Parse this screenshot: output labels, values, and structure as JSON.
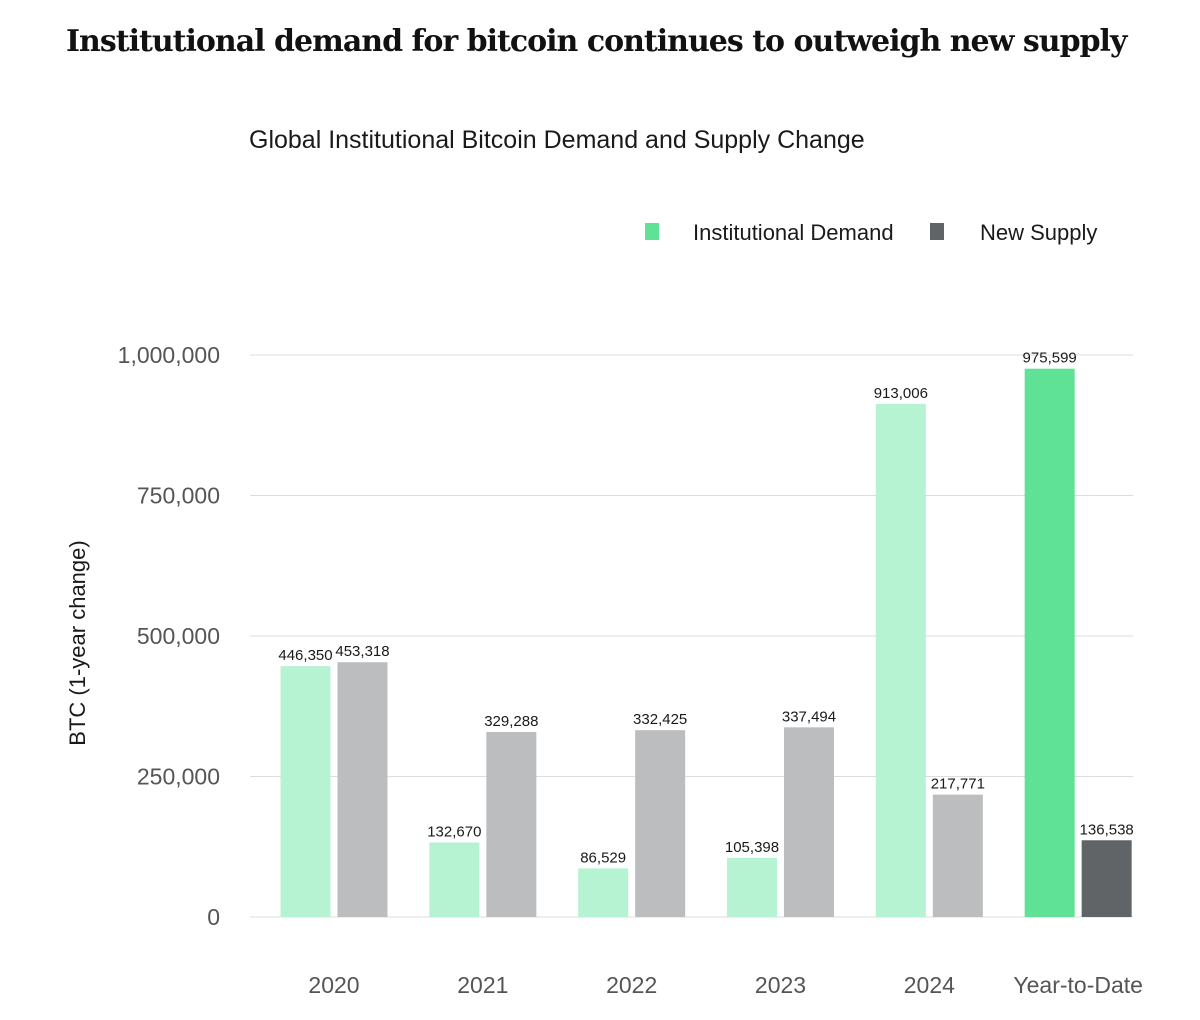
{
  "headline": "Institutional demand for bitcoin continues to outweigh new supply",
  "chart_data": {
    "type": "bar",
    "title": "Global Institutional Bitcoin Demand and Supply Change",
    "ylabel": "BTC (1-year change)",
    "xlabel": "",
    "ylim": [
      0,
      1000000
    ],
    "yticks": [
      {
        "value": 0,
        "label": "0"
      },
      {
        "value": 250000,
        "label": "250,000"
      },
      {
        "value": 500000,
        "label": "500,000"
      },
      {
        "value": 750000,
        "label": "750,000"
      },
      {
        "value": 1000000,
        "label": "1,000,000"
      }
    ],
    "grid": true,
    "legend_position": "top-right",
    "categories": [
      "2020",
      "2021",
      "2022",
      "2023",
      "2024",
      "Year-to-Date"
    ],
    "series": [
      {
        "name": "Institutional Demand",
        "color": "#b6f3d2",
        "highlight_color": "#5fe196",
        "legend_color": "#5fe196",
        "values": [
          446350,
          132670,
          86529,
          105398,
          913006,
          975599
        ],
        "labels": [
          "446,350",
          "132,670",
          "86,529",
          "105,398",
          "913,006",
          "975,599"
        ]
      },
      {
        "name": "New Supply",
        "color": "#bbbdbe",
        "highlight_color": "#606466",
        "legend_color": "#606466",
        "values": [
          453318,
          329288,
          332425,
          337494,
          217771,
          136538
        ],
        "labels": [
          "453,318",
          "329,288",
          "332,425",
          "337,494",
          "217,771",
          "136,538"
        ]
      }
    ],
    "highlighted_category": "Year-to-Date"
  }
}
